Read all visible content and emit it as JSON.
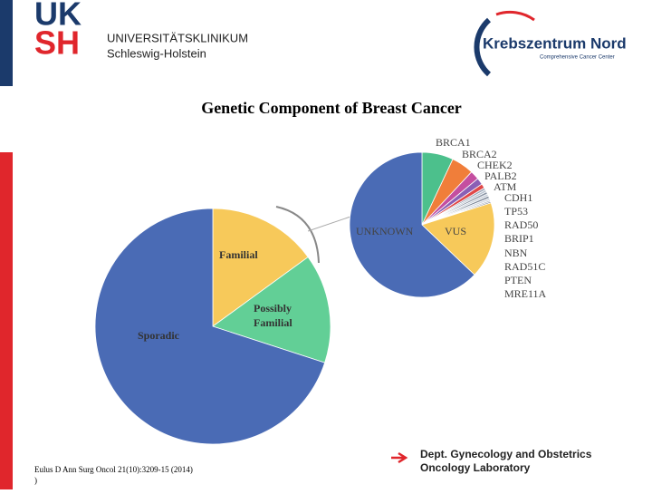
{
  "header": {
    "logo_top": "UK",
    "logo_bottom": "SH",
    "institution": "UNIVERSITÄTSKLINIKUM",
    "region": "Schleswig-Holstein",
    "partner": "Krebszentrum Nord",
    "partner_subtitle": "Comprehensive Cancer Center"
  },
  "title": "Genetic Component of Breast Cancer",
  "chart_data": [
    {
      "type": "pie",
      "categories": [
        "Familial",
        "Possibly Familial",
        "Sporadic"
      ],
      "values": [
        15,
        15,
        70
      ],
      "colors": [
        "#f7c95a",
        "#62cf96",
        "#4a6bb5"
      ]
    },
    {
      "type": "pie",
      "categories": [
        "BRCA1",
        "BRCA2",
        "CHEK2",
        "PALB2",
        "ATM",
        "CDH1",
        "TP53",
        "RAD50",
        "BRIP1",
        "NBN",
        "RAD51C",
        "PTEN",
        "MRE11A",
        "VUS",
        "UNKNOWN"
      ],
      "values": [
        7,
        5,
        2,
        1.5,
        1,
        0.5,
        0.5,
        0.5,
        0.5,
        0.5,
        0.5,
        0.3,
        0.3,
        17,
        62.9
      ],
      "colors": [
        "#4cc08c",
        "#f07e3a",
        "#c44ea0",
        "#8a5fb5",
        "#e04848",
        "#9aa7b8",
        "#b8c2cf",
        "#8893a3",
        "#c8d0da",
        "#7a8596",
        "#d4dae2",
        "#a8b2c0",
        "#6e7888",
        "#f7c95a",
        "#4a6bb5"
      ]
    }
  ],
  "footer": {
    "citation": "Eulus D Ann Surg Oncol 21(10):3209-15 (2014)",
    "citation_end": ")",
    "dept": "Dept. Gynecology and Obstetrics",
    "lab": "Oncology Laboratory"
  }
}
